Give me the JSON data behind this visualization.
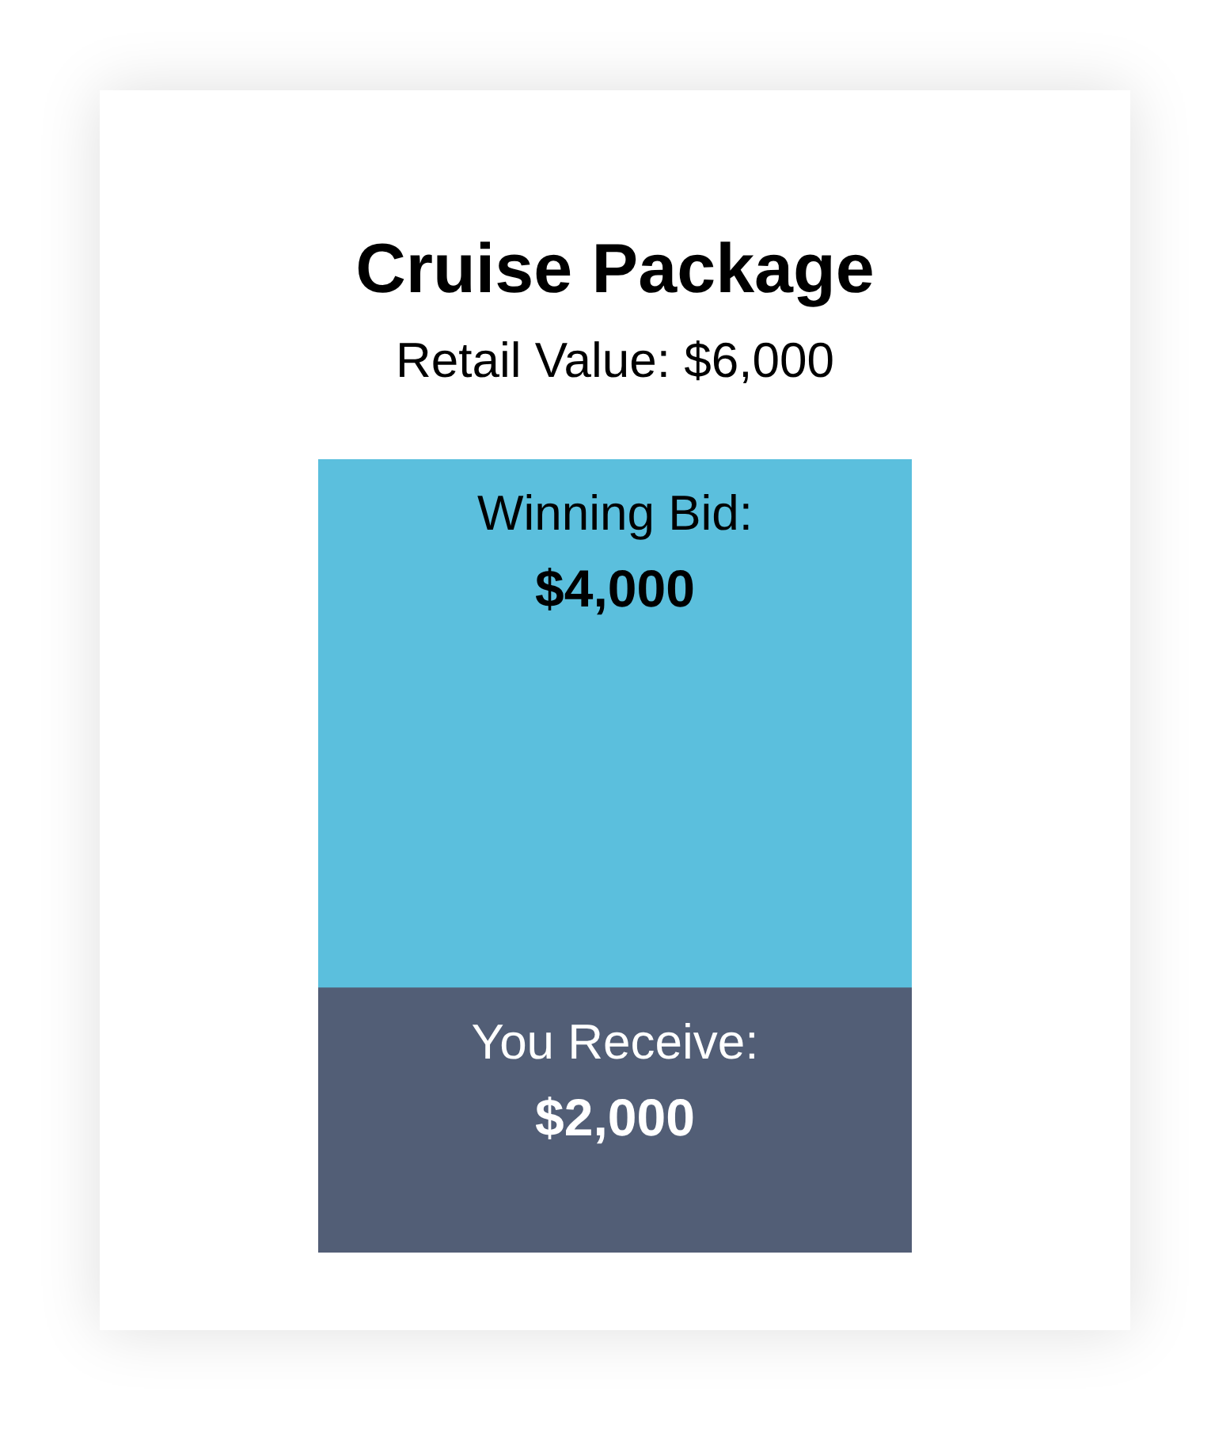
{
  "chart_data": {
    "type": "bar",
    "title": "Cruise Package",
    "subtitle": "Retail Value: $6,000",
    "categories": [
      null
    ],
    "stacked": true,
    "tick_labels": false,
    "series": [
      {
        "name": "You Receive:",
        "color": "#525e76",
        "values": [
          2000
        ],
        "value_labels": [
          "$2,000"
        ]
      },
      {
        "name": "Winning Bid:",
        "color": "#5bbfdd",
        "values": [
          4000
        ],
        "value_labels": [
          "$4,000"
        ]
      }
    ]
  }
}
